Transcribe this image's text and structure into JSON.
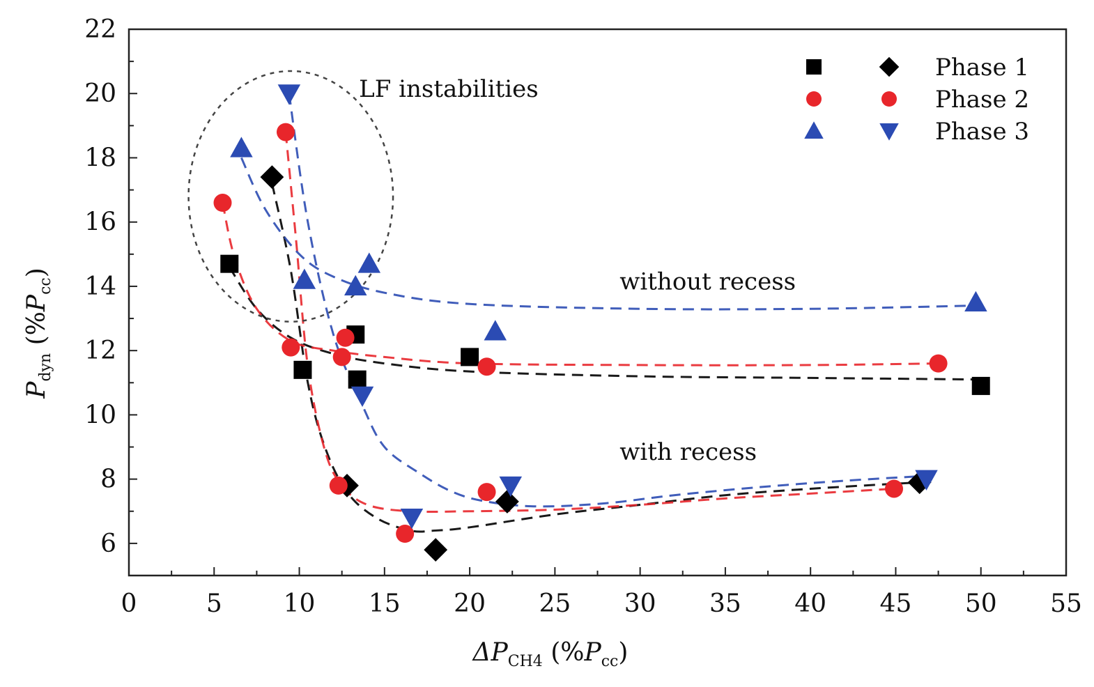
{
  "chart_data": {
    "type": "scatter",
    "xaxis": {
      "label_symbol": "ΔP",
      "label_sub": "CH4",
      "label_paren_open": " (%",
      "label_inner": "P",
      "label_inner_sub": "cc",
      "label_paren_close": ")",
      "lim": [
        0,
        55
      ],
      "ticks": [
        0,
        5,
        10,
        15,
        20,
        25,
        30,
        35,
        40,
        45,
        50,
        55
      ],
      "tick_labels": [
        "0",
        "5",
        "10",
        "15",
        "20",
        "25",
        "30",
        "35",
        "40",
        "45",
        "50",
        "55"
      ]
    },
    "yaxis": {
      "label_symbol": "P",
      "label_sub": "dyn",
      "label_paren_open": " (%",
      "label_inner": "P",
      "label_inner_sub": "cc",
      "label_paren_close": ")",
      "lim": [
        5,
        22
      ],
      "ticks": [
        6,
        8,
        10,
        12,
        14,
        16,
        18,
        20,
        22
      ],
      "tick_labels": [
        "6",
        "8",
        "10",
        "12",
        "14",
        "16",
        "18",
        "20",
        "22"
      ]
    },
    "legend": {
      "position": "top-right",
      "entries": [
        {
          "label": "Phase 1",
          "marker_left": "square",
          "marker_right": "diamond",
          "color": "#000000"
        },
        {
          "label": "Phase 2",
          "marker_left": "circle",
          "marker_right": "circle",
          "color": "#e8262b"
        },
        {
          "label": "Phase 3",
          "marker_left": "triangle-up",
          "marker_right": "triangle-down",
          "color": "#2b4bb3"
        }
      ]
    },
    "annotations": [
      {
        "text": "LF instabilities",
        "x": 13.5,
        "y": 19.9
      },
      {
        "text": "without recess",
        "x": 28.8,
        "y": 13.9
      },
      {
        "text": "with recess",
        "x": 28.8,
        "y": 8.6
      }
    ],
    "highlight_ellipse": {
      "cx": 9.5,
      "cy": 16.8,
      "rx": 6.0,
      "ry": 3.9
    },
    "series": [
      {
        "name": "Phase 1 without recess",
        "marker": "square",
        "color": "#000000",
        "points": [
          [
            5.9,
            14.7
          ],
          [
            10.2,
            11.4
          ],
          [
            13.3,
            12.5
          ],
          [
            13.4,
            11.1
          ],
          [
            20.0,
            11.8
          ],
          [
            50.0,
            10.9
          ]
        ],
        "fit": [
          [
            5.9,
            14.6
          ],
          [
            7.5,
            13.3
          ],
          [
            9.5,
            12.4
          ],
          [
            12,
            11.9
          ],
          [
            15,
            11.6
          ],
          [
            20,
            11.35
          ],
          [
            30,
            11.2
          ],
          [
            40,
            11.15
          ],
          [
            50,
            11.1
          ]
        ]
      },
      {
        "name": "Phase 1 with recess",
        "marker": "diamond",
        "color": "#000000",
        "points": [
          [
            8.4,
            17.4
          ],
          [
            12.8,
            7.8
          ],
          [
            18.0,
            5.8
          ],
          [
            22.2,
            7.3
          ],
          [
            46.4,
            7.9
          ]
        ],
        "fit": [
          [
            8.4,
            17.2
          ],
          [
            9.5,
            14.5
          ],
          [
            10.5,
            11.0
          ],
          [
            11.5,
            9.0
          ],
          [
            12.8,
            7.6
          ],
          [
            14.5,
            6.8
          ],
          [
            16.5,
            6.4
          ],
          [
            18,
            6.4
          ],
          [
            20,
            6.5
          ],
          [
            25,
            6.9
          ],
          [
            30,
            7.2
          ],
          [
            35,
            7.5
          ],
          [
            40,
            7.7
          ],
          [
            46.4,
            7.9
          ]
        ]
      },
      {
        "name": "Phase 2 without recess",
        "marker": "circle",
        "color": "#e8262b",
        "points": [
          [
            5.5,
            16.6
          ],
          [
            9.5,
            12.1
          ],
          [
            12.5,
            11.8
          ],
          [
            12.7,
            12.4
          ],
          [
            21.0,
            11.5
          ],
          [
            47.5,
            11.6
          ]
        ],
        "fit": [
          [
            5.5,
            16.6
          ],
          [
            6.2,
            14.9
          ],
          [
            7.5,
            13.3
          ],
          [
            9.5,
            12.3
          ],
          [
            12,
            12.0
          ],
          [
            15,
            11.8
          ],
          [
            20,
            11.6
          ],
          [
            30,
            11.55
          ],
          [
            40,
            11.55
          ],
          [
            47.5,
            11.6
          ]
        ]
      },
      {
        "name": "Phase 2 with recess",
        "marker": "circle",
        "color": "#e8262b",
        "points": [
          [
            9.2,
            18.8
          ],
          [
            12.3,
            7.8
          ],
          [
            16.2,
            6.3
          ],
          [
            21.0,
            7.6
          ],
          [
            44.9,
            7.7
          ]
        ],
        "fit": [
          [
            9.2,
            18.8
          ],
          [
            9.8,
            15.5
          ],
          [
            10.5,
            11.5
          ],
          [
            11.5,
            8.9
          ],
          [
            12.5,
            7.8
          ],
          [
            14,
            7.2
          ],
          [
            16.5,
            7.0
          ],
          [
            20,
            7.0
          ],
          [
            25,
            7.05
          ],
          [
            30,
            7.2
          ],
          [
            35,
            7.4
          ],
          [
            40,
            7.55
          ],
          [
            44.9,
            7.7
          ]
        ]
      },
      {
        "name": "Phase 3 without recess",
        "marker": "triangle-up",
        "color": "#2b4bb3",
        "points": [
          [
            6.6,
            18.3
          ],
          [
            10.3,
            14.2
          ],
          [
            13.3,
            14.0
          ],
          [
            14.1,
            14.7
          ],
          [
            21.5,
            12.6
          ],
          [
            49.7,
            13.5
          ]
        ],
        "fit": [
          [
            6.6,
            18.0
          ],
          [
            8,
            16.4
          ],
          [
            10,
            15.0
          ],
          [
            12,
            14.3
          ],
          [
            15,
            13.8
          ],
          [
            20,
            13.45
          ],
          [
            30,
            13.3
          ],
          [
            40,
            13.3
          ],
          [
            49.7,
            13.4
          ]
        ]
      },
      {
        "name": "Phase 3 with recess",
        "marker": "triangle-down",
        "color": "#2b4bb3",
        "points": [
          [
            9.4,
            20.0
          ],
          [
            13.7,
            10.6
          ],
          [
            16.6,
            6.8
          ],
          [
            22.4,
            7.8
          ],
          [
            46.8,
            8.0
          ]
        ],
        "fit": [
          [
            9.4,
            20.0
          ],
          [
            10.5,
            16.0
          ],
          [
            12,
            12.5
          ],
          [
            13.7,
            10.3
          ],
          [
            15,
            9.0
          ],
          [
            17,
            8.2
          ],
          [
            19,
            7.6
          ],
          [
            21,
            7.3
          ],
          [
            24,
            7.15
          ],
          [
            28,
            7.25
          ],
          [
            32,
            7.5
          ],
          [
            37,
            7.75
          ],
          [
            42,
            7.95
          ],
          [
            46.8,
            8.1
          ]
        ]
      }
    ]
  }
}
